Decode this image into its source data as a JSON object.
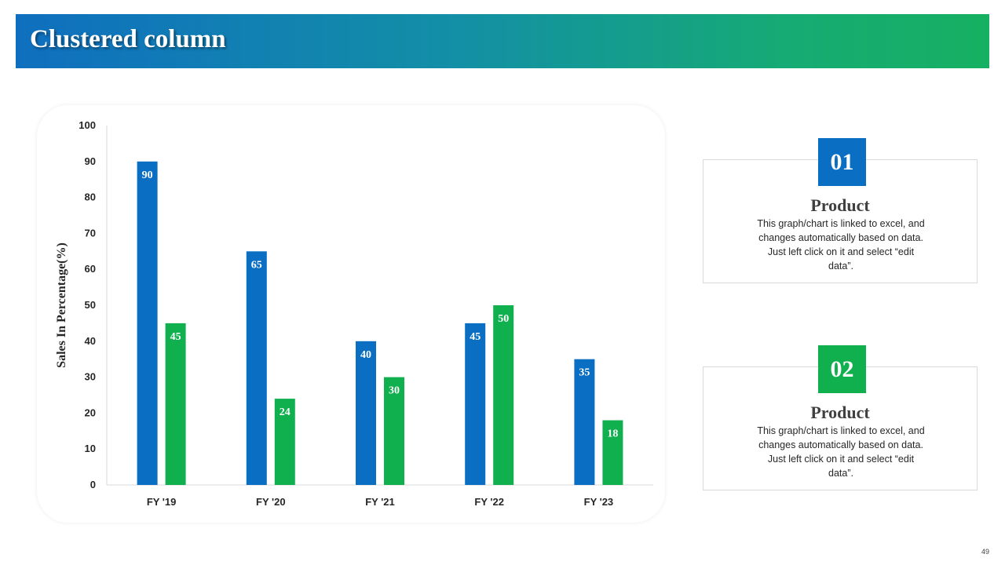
{
  "slide": {
    "title": "Clustered column",
    "page_number": "49"
  },
  "colors": {
    "blue": "#0a6fc2",
    "green": "#11b04f",
    "axis": "#d9d9d9",
    "tick_text": "#262626"
  },
  "chart_data": {
    "type": "bar",
    "title": "",
    "xlabel": "",
    "ylabel": "Sales In Percentage(%)",
    "categories": [
      "FY '19",
      "FY '20",
      "FY '21",
      "FY '22",
      "FY '23"
    ],
    "series": [
      {
        "values": [
          90,
          65,
          40,
          45,
          35
        ],
        "color": "#0a6fc2"
      },
      {
        "values": [
          45,
          24,
          30,
          50,
          18
        ],
        "color": "#11b04f"
      }
    ],
    "ylim": [
      0,
      100
    ],
    "yticks": [
      0,
      10,
      20,
      30,
      40,
      50,
      60,
      70,
      80,
      90,
      100
    ],
    "data_labels": true,
    "grid": false,
    "legend": "none"
  },
  "cards": [
    {
      "number": "01",
      "badge_color": "#0a6fc2",
      "heading": "Product",
      "text": "This graph/chart is linked to excel, and changes automatically based on data. Just left click on it and select “edit data”."
    },
    {
      "number": "02",
      "badge_color": "#11b04f",
      "heading": "Product",
      "text": "This graph/chart is linked to excel, and changes automatically based on data. Just left click on it and select “edit data”."
    }
  ]
}
